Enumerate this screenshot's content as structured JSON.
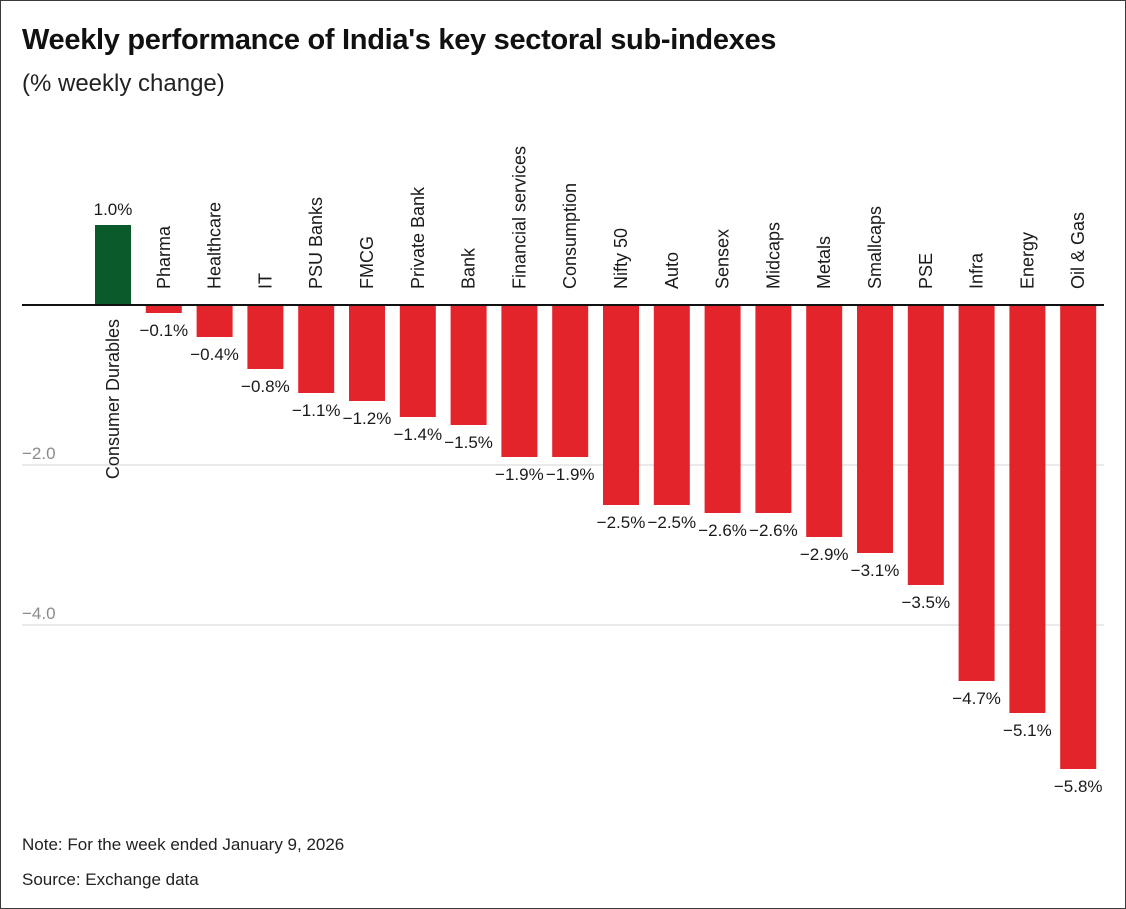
{
  "title": "Weekly performance of India's key sectoral sub-indexes",
  "subtitle": "(% weekly change)",
  "note": "Note: For the week ended January 9, 2026",
  "source": "Source: Exchange data",
  "colors": {
    "positive": "#0b5a2b",
    "negative": "#e3242b",
    "gridline": "#d6d6d6",
    "axis": "#111111"
  },
  "chart_data": {
    "type": "bar",
    "orientation": "vertical",
    "categories": [
      "Consumer Durables",
      "Pharma",
      "Healthcare",
      "IT",
      "PSU Banks",
      "FMCG",
      "Private Bank",
      "Bank",
      "Financial services",
      "Consumption",
      "Nifty 50",
      "Auto",
      "Sensex",
      "Midcaps",
      "Metals",
      "Smallcaps",
      "PSE",
      "Infra",
      "Energy",
      "Oil & Gas"
    ],
    "values": [
      1.0,
      -0.1,
      -0.4,
      -0.8,
      -1.1,
      -1.2,
      -1.4,
      -1.5,
      -1.9,
      -1.9,
      -2.5,
      -2.5,
      -2.6,
      -2.6,
      -2.9,
      -3.1,
      -3.5,
      -4.7,
      -5.1,
      -5.8
    ],
    "value_labels": [
      "1.0%",
      "−0.1%",
      "−0.4%",
      "−0.8%",
      "−1.1%",
      "−1.2%",
      "−1.4%",
      "−1.5%",
      "−1.9%",
      "−1.9%",
      "−2.5%",
      "−2.5%",
      "−2.6%",
      "−2.6%",
      "−2.9%",
      "−3.1%",
      "−3.5%",
      "−4.7%",
      "−5.1%",
      "−5.8%"
    ],
    "y_ticks": [
      -2.0,
      -4.0
    ],
    "y_tick_labels": [
      "−2.0",
      "−4.0"
    ],
    "ylim": [
      -6.0,
      1.3
    ],
    "grid": true
  }
}
